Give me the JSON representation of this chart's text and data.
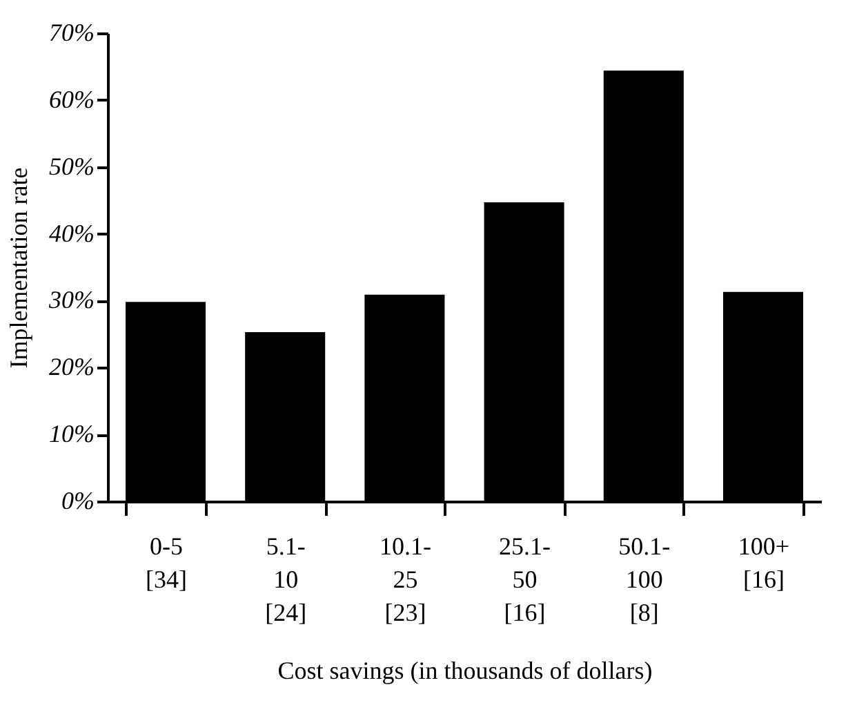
{
  "chart_data": {
    "type": "bar",
    "xlabel": "Cost savings (in thousands of dollars)",
    "ylabel": "Implementation rate",
    "categories": [
      "0-5\n[34]",
      "5.1-\n10\n[24]",
      "10.1-\n25\n[23]",
      "25.1-\n50\n[16]",
      "50.1-\n100\n[8]",
      "100+\n[16]"
    ],
    "values": [
      29.8,
      25.3,
      30.9,
      44.7,
      64.4,
      31.3
    ],
    "color": "#000000",
    "ylim": [
      0,
      70
    ],
    "yticks": [
      {
        "value": 0,
        "label": "0%"
      },
      {
        "value": 10,
        "label": "10%"
      },
      {
        "value": 20,
        "label": "20%"
      },
      {
        "value": 30,
        "label": "30%"
      },
      {
        "value": 40,
        "label": "40%"
      },
      {
        "value": 50,
        "label": "50%"
      },
      {
        "value": 60,
        "label": "60%"
      },
      {
        "value": 70,
        "label": "70%"
      }
    ],
    "grid": false
  }
}
